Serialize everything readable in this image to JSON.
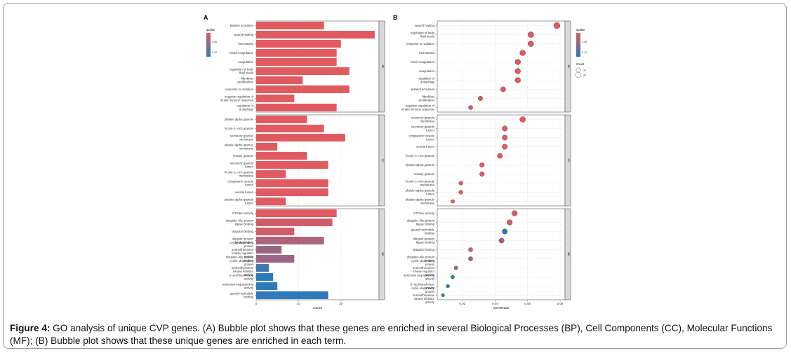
{
  "caption": {
    "label": "Figure 4:",
    "text": " GO analysis of unique CVP genes. (A) Bubble plot shows that these genes are enriched in several Biological Processes (BP), Cell Components (CC), Molecular Functions (MF); (B) Bubble plot shows that these unique genes are enriched in each term."
  },
  "colors": {
    "low": "#2e7ab8",
    "high": "#e05a5f",
    "panel_bg": "#ffffff",
    "strip": "#d9d9d9",
    "grid": "#ebebeb"
  },
  "chart_data": [
    {
      "panel_label": "A",
      "type": "bar",
      "orientation": "horizontal",
      "xlabel": "Count",
      "xlim": [
        0,
        29
      ],
      "xticks": [
        0,
        10,
        20
      ],
      "legend": {
        "title": "qvalue",
        "ticks": [
          "0.05",
          "0.10"
        ],
        "position": "left"
      },
      "facets": [
        {
          "name": "BP",
          "terms": [
            {
              "label": "platelet activation",
              "count": 16,
              "q": 0.02
            },
            {
              "label": "wound healing",
              "count": 28,
              "q": 0.02
            },
            {
              "label": "hemostasis",
              "count": 20,
              "q": 0.02
            },
            {
              "label": "blood coagulation",
              "count": 19,
              "q": 0.02
            },
            {
              "label": "coagulation",
              "count": 19,
              "q": 0.02
            },
            {
              "label": "regulation of body fluid levels",
              "count": 22,
              "q": 0.02
            },
            {
              "label": "fibroblast proliferation",
              "count": 11,
              "q": 0.02
            },
            {
              "label": "response to radiation",
              "count": 22,
              "q": 0.02
            },
            {
              "label": "negative regulation of innate immune response",
              "count": 9,
              "q": 0.02
            },
            {
              "label": "regulation of autophagy",
              "count": 19,
              "q": 0.02
            }
          ]
        },
        {
          "name": "CC",
          "terms": [
            {
              "label": "platelet alpha granule",
              "count": 12,
              "q": 0.02
            },
            {
              "label": "ficolin−1−rich granule",
              "count": 16,
              "q": 0.02
            },
            {
              "label": "secretory granule membrane",
              "count": 21,
              "q": 0.02
            },
            {
              "label": "platelet alpha granule membrane",
              "count": 5,
              "q": 0.02
            },
            {
              "label": "tertiary granule",
              "count": 12,
              "q": 0.02
            },
            {
              "label": "secretory granule lumen",
              "count": 17,
              "q": 0.02
            },
            {
              "label": "ficolin−1−rich granule membrane",
              "count": 7,
              "q": 0.02
            },
            {
              "label": "cytoplasmic vesicle lumen",
              "count": 17,
              "q": 0.02
            },
            {
              "label": "vesicle lumen",
              "count": 17,
              "q": 0.02
            },
            {
              "label": "platelet alpha granule lumen",
              "count": 7,
              "q": 0.02
            }
          ]
        },
        {
          "name": "MF",
          "terms": [
            {
              "label": "GTPase activity",
              "count": 19,
              "q": 0.02
            },
            {
              "label": "ubiquitin−like protein ligase binding",
              "count": 18,
              "q": 0.03
            },
            {
              "label": "ubiquitin binding",
              "count": 9,
              "q": 0.03
            },
            {
              "label": "ubiquitin protein ligase binding",
              "count": 16,
              "q": 0.05
            },
            {
              "label": "cyclin−dependent protein serine/threonine kinase regulator activity",
              "count": 6,
              "q": 0.06
            },
            {
              "label": "ubiquitin−like protein binding",
              "count": 9,
              "q": 0.06
            },
            {
              "label": "cyclin−dependent protein serine/threonine kinase inhibitor activity",
              "count": 3,
              "q": 0.11
            },
            {
              "label": "S−acyltransferase activity",
              "count": 4,
              "q": 0.12
            },
            {
              "label": "molecular sequestering activity",
              "count": 5,
              "q": 0.12
            },
            {
              "label": "guanyl nucleotide binding",
              "count": 17,
              "q": 0.12
            }
          ]
        }
      ]
    },
    {
      "panel_label": "B",
      "type": "scatter",
      "xlabel": "GeneRatio",
      "xlim": [
        0.0045,
        0.083
      ],
      "xticks": [
        0.02,
        0.04,
        0.06,
        0.08
      ],
      "legend": {
        "color_title": "qvalue",
        "color_ticks": [
          "0.05",
          "0.10"
        ],
        "size_title": "Count",
        "size_ticks": [
          10,
          20
        ],
        "position": "right"
      },
      "facets": [
        {
          "name": "BP",
          "terms": [
            {
              "label": "wound healing",
              "ratio": 0.078,
              "count": 28,
              "q": 0.02
            },
            {
              "label": "regulation of body fluid levels",
              "ratio": 0.062,
              "count": 22,
              "q": 0.02
            },
            {
              "label": "response to radiation",
              "ratio": 0.062,
              "count": 22,
              "q": 0.02
            },
            {
              "label": "hemostasis",
              "ratio": 0.057,
              "count": 20,
              "q": 0.02
            },
            {
              "label": "blood coagulation",
              "ratio": 0.054,
              "count": 19,
              "q": 0.02
            },
            {
              "label": "coagulation",
              "ratio": 0.054,
              "count": 19,
              "q": 0.02
            },
            {
              "label": "regulation of autophagy",
              "ratio": 0.054,
              "count": 19,
              "q": 0.02
            },
            {
              "label": "platelet activation",
              "ratio": 0.045,
              "count": 16,
              "q": 0.02
            },
            {
              "label": "fibroblast proliferation",
              "ratio": 0.031,
              "count": 11,
              "q": 0.02
            },
            {
              "label": "negative regulation of innate immune response",
              "ratio": 0.025,
              "count": 9,
              "q": 0.02
            }
          ]
        },
        {
          "name": "CC",
          "terms": [
            {
              "label": "secretory granule membrane",
              "ratio": 0.057,
              "count": 21,
              "q": 0.02
            },
            {
              "label": "secretory granule lumen",
              "ratio": 0.046,
              "count": 17,
              "q": 0.02
            },
            {
              "label": "cytoplasmic vesicle lumen",
              "ratio": 0.046,
              "count": 17,
              "q": 0.02
            },
            {
              "label": "vesicle lumen",
              "ratio": 0.046,
              "count": 17,
              "q": 0.02
            },
            {
              "label": "ficolin−1−rich granule",
              "ratio": 0.043,
              "count": 16,
              "q": 0.02
            },
            {
              "label": "platelet alpha granule",
              "ratio": 0.032,
              "count": 12,
              "q": 0.02
            },
            {
              "label": "tertiary granule",
              "ratio": 0.032,
              "count": 12,
              "q": 0.02
            },
            {
              "label": "ficolin−1−rich granule membrane",
              "ratio": 0.019,
              "count": 7,
              "q": 0.02
            },
            {
              "label": "platelet alpha granule lumen",
              "ratio": 0.019,
              "count": 7,
              "q": 0.02
            },
            {
              "label": "platelet alpha granule membrane",
              "ratio": 0.014,
              "count": 5,
              "q": 0.02
            }
          ]
        },
        {
          "name": "MF",
          "terms": [
            {
              "label": "GTPase activity",
              "ratio": 0.052,
              "count": 19,
              "q": 0.02
            },
            {
              "label": "ubiquitin−like protein ligase binding",
              "ratio": 0.049,
              "count": 18,
              "q": 0.03
            },
            {
              "label": "guanyl nucleotide binding",
              "ratio": 0.046,
              "count": 17,
              "q": 0.12
            },
            {
              "label": "ubiquitin protein ligase binding",
              "ratio": 0.044,
              "count": 16,
              "q": 0.05
            },
            {
              "label": "ubiquitin binding",
              "ratio": 0.025,
              "count": 9,
              "q": 0.03
            },
            {
              "label": "ubiquitin−like protein binding",
              "ratio": 0.025,
              "count": 9,
              "q": 0.06
            },
            {
              "label": "cyclin−dependent protein serine/threonine kinase regulator activity",
              "ratio": 0.016,
              "count": 6,
              "q": 0.06
            },
            {
              "label": "molecular sequestering activity",
              "ratio": 0.014,
              "count": 5,
              "q": 0.12
            },
            {
              "label": "S−acyltransferase activity",
              "ratio": 0.011,
              "count": 4,
              "q": 0.12
            },
            {
              "label": "cyclin−dependent protein serine/threonine kinase inhibitor activity",
              "ratio": 0.008,
              "count": 3,
              "q": 0.11
            }
          ]
        }
      ]
    }
  ]
}
